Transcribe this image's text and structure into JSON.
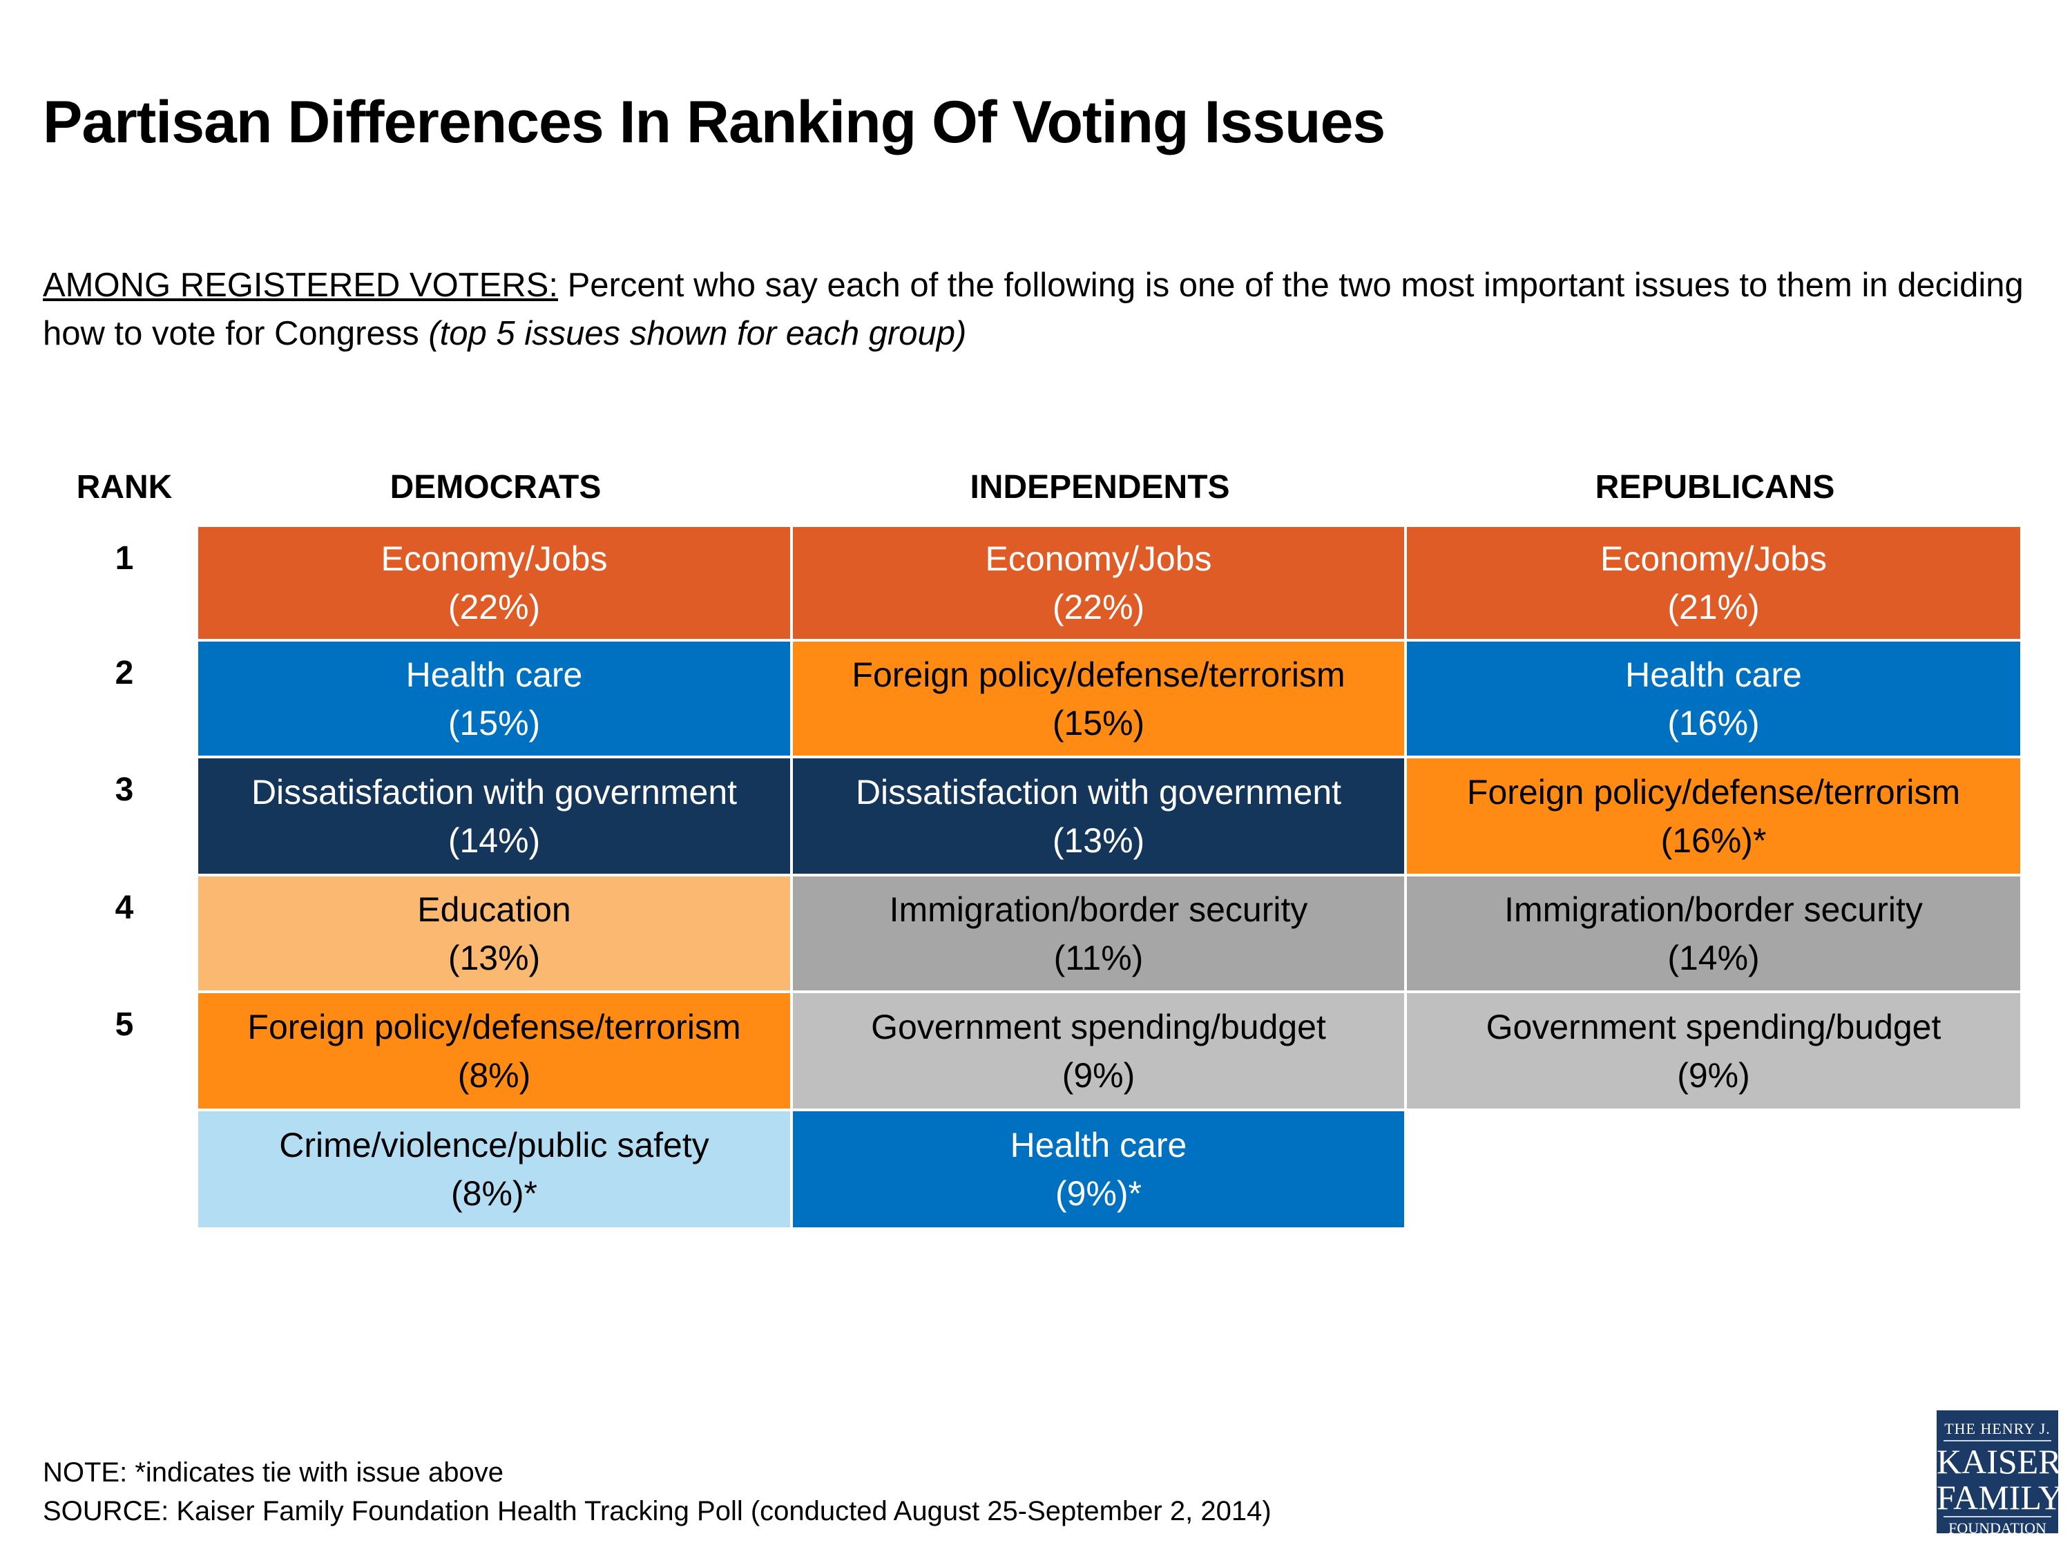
{
  "title": "Partisan Differences In Ranking Of Voting Issues",
  "subtitle": {
    "lead": "AMONG REGISTERED VOTERS:",
    "text": " Percent who say each of the following is one of the two most important issues to them in deciding how to vote for Congress ",
    "italic": "(top 5 issues shown for each group)"
  },
  "headers": {
    "rank": "RANK",
    "democrats": "DEMOCRATS",
    "independents": "INDEPENDENTS",
    "republicans": "REPUBLICANS"
  },
  "ranks": [
    "1",
    "2",
    "3",
    "4",
    "5"
  ],
  "colors": {
    "economy": "#E05C27",
    "health": "#0070C0",
    "dissatisfaction": "#14365A",
    "education": "#FBB870",
    "foreign": "#FF8A14",
    "immigration": "#A6A6A6",
    "spending": "#BFBFBF",
    "crime": "#B3DDF3"
  },
  "democrats": [
    {
      "issue": "Economy/Jobs",
      "pct": "(22%)",
      "color": "#E05C27",
      "text_color": "#FFFFFF"
    },
    {
      "issue": "Health care",
      "pct": "(15%)",
      "color": "#0070C0",
      "text_color": "#FFFFFF"
    },
    {
      "issue": "Dissatisfaction with government",
      "pct": "(14%)",
      "color": "#14365A",
      "text_color": "#FFFFFF"
    },
    {
      "issue": "Education",
      "pct": "(13%)",
      "color": "#FBB870",
      "text_color": "#000000"
    },
    {
      "issue": "Foreign policy/defense/terrorism",
      "pct": "(8%)",
      "color": "#FF8A14",
      "text_color": "#000000"
    },
    {
      "issue": "Crime/violence/public safety",
      "pct": "(8%)*",
      "color": "#B3DDF3",
      "text_color": "#000000"
    }
  ],
  "independents": [
    {
      "issue": "Economy/Jobs",
      "pct": "(22%)",
      "color": "#E05C27",
      "text_color": "#FFFFFF"
    },
    {
      "issue": "Foreign policy/defense/terrorism",
      "pct": "(15%)",
      "color": "#FF8A14",
      "text_color": "#000000"
    },
    {
      "issue": "Dissatisfaction with government",
      "pct": "(13%)",
      "color": "#14365A",
      "text_color": "#FFFFFF"
    },
    {
      "issue": "Immigration/border security",
      "pct": "(11%)",
      "color": "#A6A6A6",
      "text_color": "#000000"
    },
    {
      "issue": "Government spending/budget",
      "pct": "(9%)",
      "color": "#BFBFBF",
      "text_color": "#000000"
    },
    {
      "issue": "Health care",
      "pct": "(9%)*",
      "color": "#0070C0",
      "text_color": "#FFFFFF"
    }
  ],
  "republicans": [
    {
      "issue": "Economy/Jobs",
      "pct": "(21%)",
      "color": "#E05C27",
      "text_color": "#FFFFFF"
    },
    {
      "issue": "Health care",
      "pct": "(16%)",
      "color": "#0070C0",
      "text_color": "#FFFFFF"
    },
    {
      "issue": "Foreign policy/defense/terrorism",
      "pct": "(16%)*",
      "color": "#FF8A14",
      "text_color": "#000000"
    },
    {
      "issue": "Immigration/border security",
      "pct": "(14%)",
      "color": "#A6A6A6",
      "text_color": "#000000"
    },
    {
      "issue": "Government spending/budget",
      "pct": "(9%)",
      "color": "#BFBFBF",
      "text_color": "#000000"
    }
  ],
  "note": "NOTE: *indicates tie with issue above",
  "source": "SOURCE: Kaiser Family Foundation Health Tracking Poll (conducted August 25-September 2, 2014)",
  "logo": {
    "line1": "THE HENRY J.",
    "line2": "KAISER",
    "line3": "FAMILY",
    "line4": "FOUNDATION"
  }
}
